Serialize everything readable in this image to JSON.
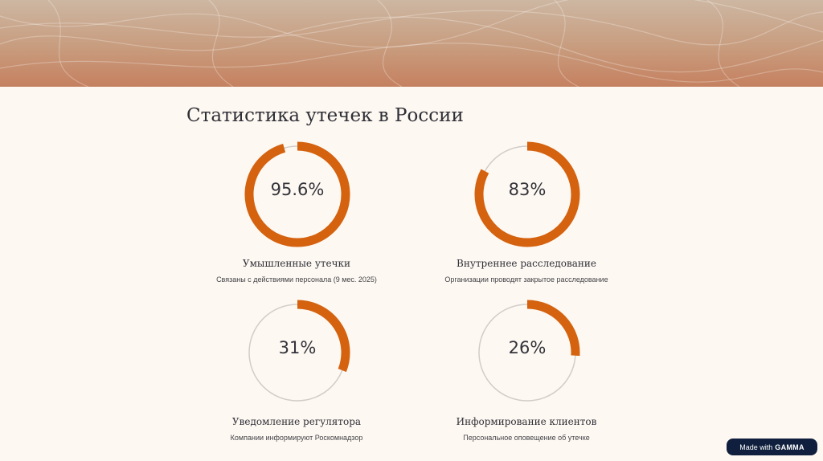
{
  "page": {
    "title": "Статистика утечек в России"
  },
  "stats": [
    {
      "value_text": "95.6%",
      "percent": 95.6,
      "label": "Умышленные утечки",
      "description": "Связаны с действиями персонала (9 мес. 2025)"
    },
    {
      "value_text": "83%",
      "percent": 83,
      "label": "Внутреннее расследование",
      "description": "Организации проводят закрытое расследование"
    },
    {
      "value_text": "31%",
      "percent": 31,
      "label": "Уведомление регулятора",
      "description": "Компании информируют Роскомнадзор"
    },
    {
      "value_text": "26%",
      "percent": 26,
      "label": "Информирование клиентов",
      "description": "Персональное оповещение об утечке"
    }
  ],
  "badge": {
    "prefix": "Made with",
    "brand": "GAMMA"
  },
  "colors": {
    "accent": "#d4620f",
    "track": "#d2cdc8",
    "background": "#fdf8f2"
  }
}
